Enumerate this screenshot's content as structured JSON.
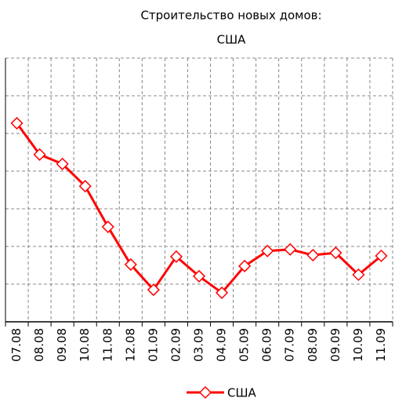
{
  "chart_data": {
    "type": "line",
    "title": [
      "Строительство новых домов:",
      "США"
    ],
    "categories": [
      "07.08",
      "08.08",
      "09.08",
      "10.08",
      "11.08",
      "12.08",
      "01.09",
      "02.09",
      "03.09",
      "04.09",
      "05.09",
      "06.09",
      "07.09",
      "08.09",
      "09.09",
      "10.09",
      "11.09"
    ],
    "series": [
      {
        "name": "США",
        "color": "#ff0000",
        "values": [
          927,
          844,
          819,
          760,
          652,
          552,
          485,
          573,
          521,
          477,
          548,
          588,
          592,
          577,
          583,
          525,
          575
        ]
      }
    ],
    "ylim": [
      400,
      1100
    ],
    "yticks": [
      400,
      500,
      600,
      700,
      800,
      900,
      1000,
      1100
    ],
    "grid": true,
    "legend": "bottom"
  }
}
